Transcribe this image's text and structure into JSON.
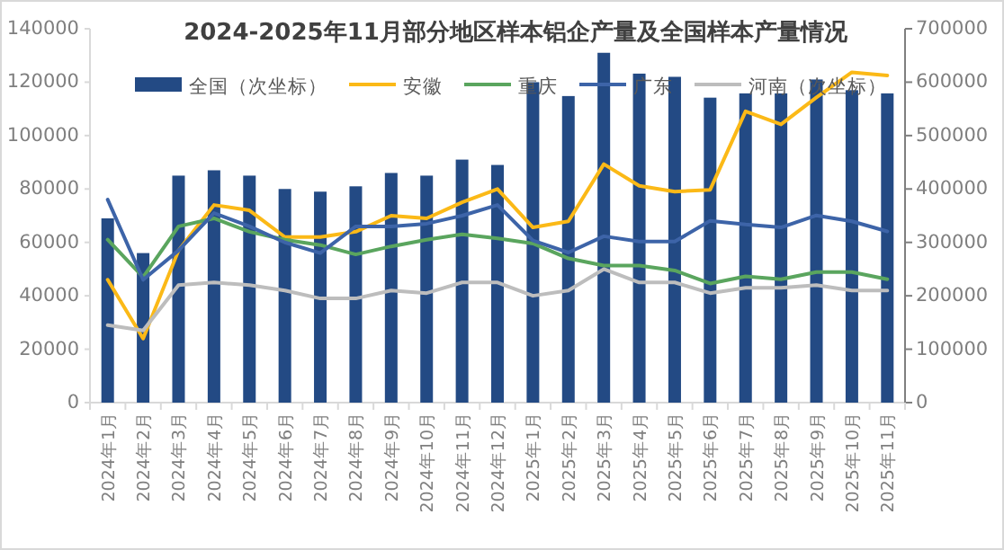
{
  "chart_data": {
    "type": "bar",
    "title": "2024-2025年11月部分地区样本铝企产量及全国样本产量情况",
    "categories": [
      "2024年1月",
      "2024年2月",
      "2024年3月",
      "2024年4月",
      "2024年5月",
      "2024年6月",
      "2024年7月",
      "2024年8月",
      "2024年9月",
      "2024年10月",
      "2024年11月",
      "2024年12月",
      "2025年1月",
      "2025年2月",
      "2025年3月",
      "2025年4月",
      "2025年5月",
      "2025年6月",
      "2025年7月",
      "2025年8月",
      "2025年9月",
      "2025年10月",
      "2025年11月"
    ],
    "series": [
      {
        "name": "全国（次坐标）",
        "axis": "y2",
        "color": "#234a84",
        "values": [
          345000,
          280000,
          425000,
          435000,
          425000,
          400000,
          395000,
          405000,
          430000,
          425000,
          455000,
          445000,
          600000,
          574000,
          655000,
          616000,
          610000,
          571000,
          579000,
          579000,
          605000,
          585000,
          579000
        ]
      },
      {
        "name": "安徽",
        "type": "line",
        "color": "#fbb917",
        "values": [
          46000,
          24000,
          57000,
          74000,
          72000,
          62000,
          62000,
          64000,
          70000,
          69000,
          75000,
          80000,
          65600,
          67900,
          89300,
          81200,
          79000,
          79700,
          109100,
          104200,
          114300,
          123700,
          122500
        ]
      },
      {
        "name": "重庆",
        "type": "line",
        "color": "#5aa55e",
        "values": [
          61000,
          47000,
          66000,
          69000,
          64000,
          61000,
          59000,
          55500,
          58500,
          61000,
          63000,
          61500,
          59600,
          54000,
          51300,
          51300,
          49500,
          44600,
          47300,
          46200,
          48900,
          48900,
          46200
        ]
      },
      {
        "name": "广东",
        "type": "line",
        "color": "#3d64a8",
        "values": [
          76000,
          46000,
          57000,
          71000,
          66000,
          60000,
          56000,
          66000,
          66000,
          67000,
          70000,
          74000,
          60700,
          56200,
          62300,
          60300,
          60300,
          68100,
          66700,
          65600,
          70100,
          67900,
          64100
        ]
      },
      {
        "name": "河南（次坐标）",
        "type": "line",
        "axis": "y2",
        "color": "#bdbdbd",
        "values": [
          145000,
          135000,
          220000,
          225000,
          220000,
          210000,
          195000,
          195000,
          210000,
          205000,
          225000,
          225000,
          200000,
          210000,
          250000,
          225000,
          225000,
          205000,
          215000,
          215000,
          220000,
          210000,
          210000
        ]
      }
    ],
    "ylim": [
      0,
      140000
    ],
    "yticks": [
      0,
      20000,
      40000,
      60000,
      80000,
      100000,
      120000,
      140000
    ],
    "y2lim": [
      0,
      700000
    ],
    "y2ticks": [
      0,
      100000,
      200000,
      300000,
      400000,
      500000,
      600000,
      700000
    ],
    "legend": "top",
    "marker": "none",
    "line_style": "solid"
  }
}
